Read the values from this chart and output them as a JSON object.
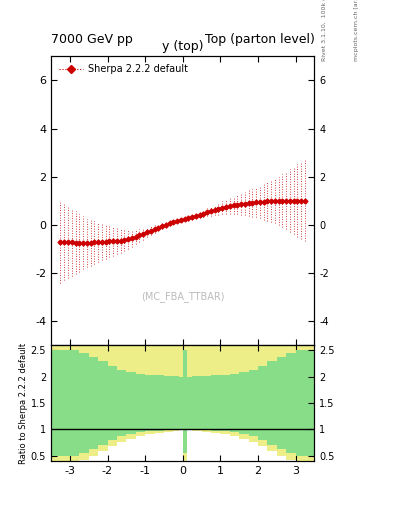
{
  "title_left": "7000 GeV pp",
  "title_right": "Top (parton level)",
  "xlabel": "y (top)",
  "ylabel_ratio": "Ratio to Sherpa 2.2.2 default",
  "right_label_top": "Rivet 3.1.10,  100k events",
  "right_label_bottom": "mcplots.cern.ch [arXiv:1306.3436]",
  "watermark": "(MC_FBA_TTBAR)",
  "legend_label": "Sherpa 2.2.2 default",
  "xlim": [
    -3.5,
    3.5
  ],
  "ylim_main": [
    -5,
    7
  ],
  "ylim_ratio": [
    0.4,
    2.6
  ],
  "yticks_main": [
    -4,
    -2,
    0,
    2,
    4,
    6
  ],
  "yticks_ratio": [
    0.5,
    1.0,
    1.5,
    2.0,
    2.5
  ],
  "main_color": "#cc0000",
  "green_color": "#88dd88",
  "yellow_color": "#eeee88",
  "x_points": [
    -3.25,
    -3.15,
    -3.05,
    -2.95,
    -2.85,
    -2.75,
    -2.65,
    -2.55,
    -2.45,
    -2.35,
    -2.25,
    -2.15,
    -2.05,
    -1.95,
    -1.85,
    -1.75,
    -1.65,
    -1.55,
    -1.45,
    -1.35,
    -1.25,
    -1.15,
    -1.05,
    -0.95,
    -0.85,
    -0.75,
    -0.65,
    -0.55,
    -0.45,
    -0.35,
    -0.25,
    -0.15,
    -0.05,
    0.05,
    0.15,
    0.25,
    0.35,
    0.45,
    0.55,
    0.65,
    0.75,
    0.85,
    0.95,
    1.05,
    1.15,
    1.25,
    1.35,
    1.45,
    1.55,
    1.65,
    1.75,
    1.85,
    1.95,
    2.05,
    2.15,
    2.25,
    2.35,
    2.45,
    2.55,
    2.65,
    2.75,
    2.85,
    2.95,
    3.05,
    3.15,
    3.25
  ],
  "y_values": [
    -0.7,
    -0.71,
    -0.72,
    -0.73,
    -0.74,
    -0.75,
    -0.75,
    -0.74,
    -0.74,
    -0.73,
    -0.72,
    -0.71,
    -0.7,
    -0.69,
    -0.68,
    -0.67,
    -0.65,
    -0.62,
    -0.59,
    -0.55,
    -0.5,
    -0.44,
    -0.38,
    -0.31,
    -0.24,
    -0.17,
    -0.11,
    -0.05,
    0.01,
    0.06,
    0.11,
    0.15,
    0.19,
    0.23,
    0.27,
    0.31,
    0.36,
    0.41,
    0.46,
    0.52,
    0.57,
    0.62,
    0.67,
    0.71,
    0.75,
    0.78,
    0.81,
    0.84,
    0.86,
    0.88,
    0.9,
    0.92,
    0.94,
    0.95,
    0.96,
    0.97,
    0.98,
    0.99,
    1.0,
    1.0,
    1.01,
    1.01,
    1.01,
    1.01,
    1.01,
    1.01
  ],
  "y_err": [
    1.7,
    1.6,
    1.5,
    1.4,
    1.3,
    1.2,
    1.1,
    1.0,
    0.95,
    0.88,
    0.82,
    0.76,
    0.7,
    0.65,
    0.6,
    0.55,
    0.5,
    0.45,
    0.4,
    0.35,
    0.3,
    0.27,
    0.24,
    0.21,
    0.19,
    0.17,
    0.15,
    0.13,
    0.12,
    0.1,
    0.09,
    0.08,
    0.08,
    0.08,
    0.09,
    0.1,
    0.12,
    0.13,
    0.15,
    0.17,
    0.19,
    0.21,
    0.24,
    0.27,
    0.3,
    0.33,
    0.36,
    0.4,
    0.44,
    0.48,
    0.53,
    0.58,
    0.63,
    0.68,
    0.74,
    0.8,
    0.86,
    0.93,
    1.0,
    1.1,
    1.2,
    1.3,
    1.4,
    1.5,
    1.6,
    1.7
  ],
  "ratio_x_edges": [
    -3.5,
    -3.0,
    -2.75,
    -2.5,
    -2.25,
    -2.0,
    -1.75,
    -1.5,
    -1.25,
    -1.0,
    -0.75,
    -0.5,
    -0.25,
    -0.1,
    0.0,
    0.1,
    0.25,
    0.5,
    0.75,
    1.0,
    1.25,
    1.5,
    1.75,
    2.0,
    2.25,
    2.5,
    2.75,
    3.0,
    3.5
  ],
  "ratio_green_low": [
    0.5,
    0.5,
    0.55,
    0.62,
    0.7,
    0.8,
    0.87,
    0.91,
    0.94,
    0.96,
    0.97,
    0.98,
    0.99,
    1.0,
    0.55,
    1.0,
    0.99,
    0.98,
    0.97,
    0.96,
    0.94,
    0.91,
    0.87,
    0.8,
    0.7,
    0.62,
    0.55,
    0.5
  ],
  "ratio_green_high": [
    2.5,
    2.5,
    2.45,
    2.38,
    2.3,
    2.2,
    2.13,
    2.09,
    2.06,
    2.04,
    2.03,
    2.02,
    2.01,
    2.0,
    2.5,
    2.0,
    2.01,
    2.02,
    2.03,
    2.04,
    2.06,
    2.09,
    2.13,
    2.2,
    2.3,
    2.38,
    2.45,
    2.5
  ],
  "ratio_yellow_low": [
    0.4,
    0.4,
    0.42,
    0.5,
    0.58,
    0.68,
    0.76,
    0.82,
    0.87,
    0.91,
    0.93,
    0.95,
    0.97,
    0.99,
    0.4,
    0.99,
    0.97,
    0.95,
    0.93,
    0.91,
    0.87,
    0.82,
    0.76,
    0.68,
    0.58,
    0.5,
    0.42,
    0.4
  ],
  "ratio_yellow_high": [
    2.6,
    2.6,
    2.6,
    2.6,
    2.6,
    2.6,
    2.6,
    2.6,
    2.6,
    2.6,
    2.6,
    2.6,
    2.6,
    2.6,
    2.6,
    2.6,
    2.6,
    2.6,
    2.6,
    2.6,
    2.6,
    2.6,
    2.6,
    2.6,
    2.6,
    2.6,
    2.6,
    2.6
  ]
}
